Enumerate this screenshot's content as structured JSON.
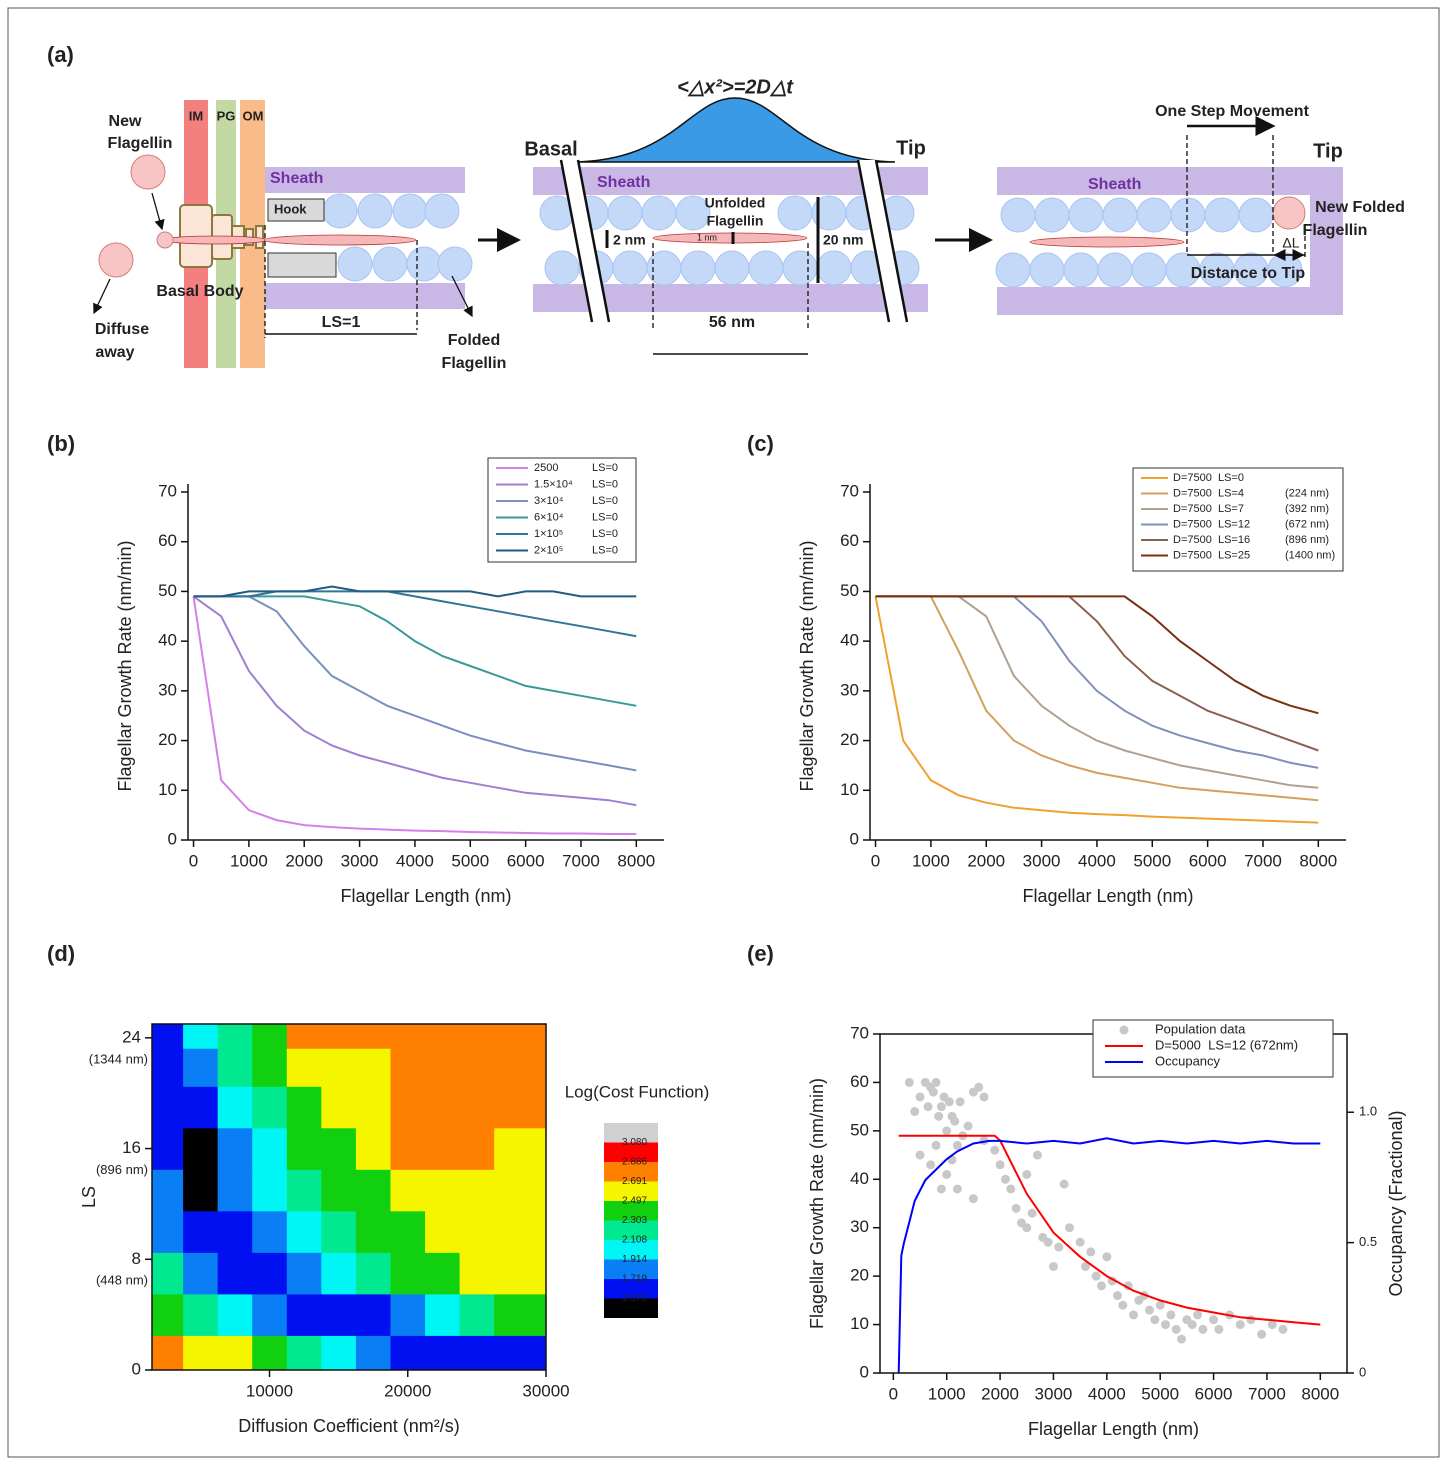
{
  "diagram": {
    "panel_label": "(a)",
    "membranes": [
      "IM",
      "PG",
      "OM"
    ],
    "new_flagellin": [
      "New",
      "Flagellin"
    ],
    "sheath": [
      "Sheath",
      "Sheath",
      "Sheath"
    ],
    "hook": "Hook",
    "basal_body": "Basal Body",
    "diffuse_away": [
      "Diffuse",
      "away"
    ],
    "ls": "LS=1",
    "folded_flagellin": [
      "Folded",
      "Flagellin"
    ],
    "msd": "<△x²>=2D△t",
    "basal": "Basal",
    "tips": [
      "Tip",
      "Tip"
    ],
    "unfolded_flagellin": [
      "Unfolded",
      "Flagellin"
    ],
    "width_2nm": "2 nm",
    "width_1nm": "1 nm",
    "width_20nm": "20 nm",
    "length_56nm": "56 nm",
    "one_step": "One Step Movement",
    "new_folded": [
      "New Folded",
      "Flagellin"
    ],
    "delta_l": "ΔL",
    "distance_to_tip": "Distance to Tip"
  },
  "chart_data": [
    {
      "type": "line",
      "panel_label": "(b)",
      "x_label": "Flagellar Length (nm)",
      "y_label": "Flagellar Growth Rate (nm/min)",
      "xlim": [
        -100,
        8500
      ],
      "ylim": [
        0,
        70
      ],
      "xticks": [
        0,
        1000,
        2000,
        3000,
        4000,
        5000,
        6000,
        7000,
        8000
      ],
      "yticks": [
        0,
        10,
        20,
        30,
        40,
        50,
        60,
        70
      ],
      "legend": "upper right",
      "x": [
        0,
        500,
        1000,
        1500,
        2000,
        2500,
        3000,
        3500,
        4000,
        4500,
        5000,
        5500,
        6000,
        6500,
        7000,
        7500,
        8000
      ],
      "series": [
        {
          "name": "2500",
          "ls": "LS=0",
          "color": "#d77fe8",
          "values": [
            49,
            12,
            6,
            4,
            3,
            2.6,
            2.3,
            2.1,
            1.9,
            1.8,
            1.6,
            1.5,
            1.4,
            1.3,
            1.3,
            1.2,
            1.2
          ]
        },
        {
          "name": "1.5×10⁴",
          "ls": "LS=0",
          "color": "#a07fd2",
          "values": [
            49,
            45,
            34,
            27,
            22,
            19,
            17,
            15.5,
            14,
            12.5,
            11.5,
            10.5,
            9.5,
            9,
            8.5,
            8,
            7
          ]
        },
        {
          "name": "3×10⁴",
          "ls": "LS=0",
          "color": "#7a8fc0",
          "values": [
            49,
            49,
            49,
            46,
            39,
            33,
            30,
            27,
            25,
            23,
            21,
            19.5,
            18,
            17,
            16,
            15,
            14
          ]
        },
        {
          "name": "6×10⁴",
          "ls": "LS=0",
          "color": "#3a9a98",
          "values": [
            49,
            49,
            49,
            49,
            49,
            48,
            47,
            44,
            40,
            37,
            35,
            33,
            31,
            30,
            29,
            28,
            27
          ]
        },
        {
          "name": "1×10⁵",
          "ls": "LS=0",
          "color": "#2f7694",
          "values": [
            49,
            49,
            49,
            50,
            50,
            50,
            50,
            50,
            49,
            48,
            47,
            46,
            45,
            44,
            43,
            42,
            41
          ]
        },
        {
          "name": "2×10⁵",
          "ls": "LS=0",
          "color": "#235a80",
          "values": [
            49,
            49,
            50,
            50,
            50,
            51,
            50,
            50,
            50,
            50,
            50,
            49,
            50,
            50,
            49,
            49,
            49
          ]
        }
      ]
    },
    {
      "type": "line",
      "panel_label": "(c)",
      "x_label": "Flagellar Length (nm)",
      "y_label": "Flagellar Growth Rate (nm/min)",
      "xlim": [
        -100,
        8500
      ],
      "ylim": [
        0,
        70
      ],
      "xticks": [
        0,
        1000,
        2000,
        3000,
        4000,
        5000,
        6000,
        7000,
        8000
      ],
      "yticks": [
        0,
        10,
        20,
        30,
        40,
        50,
        60,
        70
      ],
      "legend": "upper right",
      "x": [
        0,
        500,
        1000,
        1500,
        2000,
        2500,
        3000,
        3500,
        4000,
        4500,
        5000,
        5500,
        6000,
        6500,
        7000,
        7500,
        8000
      ],
      "series": [
        {
          "name": "D=7500  LS=0",
          "color": "#f0a030",
          "values": [
            49,
            20,
            12,
            9,
            7.5,
            6.5,
            6,
            5.5,
            5.2,
            5,
            4.7,
            4.5,
            4.3,
            4.1,
            3.9,
            3.7,
            3.5
          ]
        },
        {
          "name": "D=7500  LS=4",
          "length": "(224 nm)",
          "color": "#d4a060",
          "values": [
            49,
            49,
            49,
            38,
            26,
            20,
            17,
            15,
            13.5,
            12.5,
            11.5,
            10.5,
            10,
            9.5,
            9,
            8.5,
            8
          ]
        },
        {
          "name": "D=7500  LS=7",
          "length": "(392 nm)",
          "color": "#b0a090",
          "values": [
            49,
            49,
            49,
            49,
            45,
            33,
            27,
            23,
            20,
            18,
            16.5,
            15,
            14,
            13,
            12,
            11,
            10.5
          ]
        },
        {
          "name": "D=7500  LS=12",
          "length": "(672 nm)",
          "color": "#8090b8",
          "values": [
            49,
            49,
            49,
            49,
            49,
            49,
            44,
            36,
            30,
            26,
            23,
            21,
            19.5,
            18,
            17,
            15.5,
            14.5
          ]
        },
        {
          "name": "D=7500  LS=16",
          "length": "(896 nm)",
          "color": "#8a6050",
          "values": [
            49,
            49,
            49,
            49,
            49,
            49,
            49,
            49,
            44,
            37,
            32,
            29,
            26,
            24,
            22,
            20,
            18
          ]
        },
        {
          "name": "D=7500  LS=25",
          "length": "(1400 nm)",
          "color": "#7a3010",
          "values": [
            49,
            49,
            49,
            49,
            49,
            49,
            49,
            49,
            49,
            49,
            45,
            40,
            36,
            32,
            29,
            27,
            25.5
          ]
        }
      ]
    },
    {
      "type": "contour",
      "panel_label": "(d)",
      "x_label": "Diffusion Coefficient (nm²/s)",
      "y_label": "LS",
      "frame": true,
      "xlim": [
        1500,
        30000
      ],
      "ylim": [
        0,
        25
      ],
      "xticks": [
        10000,
        20000,
        30000
      ],
      "yticks": [
        0,
        {
          "value": 8,
          "label": "8",
          "note": "(448 nm)"
        },
        {
          "value": 16,
          "label": "16",
          "note": "(896 nm)"
        },
        {
          "value": 24,
          "label": "24",
          "note": "(1344 nm)"
        }
      ],
      "x": [
        2500,
        5000,
        7500,
        10000,
        12500,
        15000,
        17500,
        20000,
        22500,
        25000,
        27500
      ],
      "y": [
        1,
        4,
        7,
        10,
        13,
        16,
        19,
        22,
        24.5
      ],
      "z": [
        [
          2.8,
          2.6,
          2.6,
          2.4,
          2.2,
          2.0,
          1.8,
          1.65,
          1.65,
          1.65,
          1.65
        ],
        [
          2.4,
          2.2,
          2.0,
          1.8,
          1.65,
          1.65,
          1.65,
          1.8,
          2.0,
          2.2,
          2.4
        ],
        [
          2.2,
          1.8,
          1.65,
          1.65,
          1.8,
          2.0,
          2.2,
          2.4,
          2.4,
          2.6,
          2.6
        ],
        [
          1.8,
          1.65,
          1.65,
          1.8,
          2.0,
          2.2,
          2.4,
          2.4,
          2.6,
          2.6,
          2.6
        ],
        [
          1.8,
          1.5,
          1.8,
          2.0,
          2.2,
          2.4,
          2.4,
          2.6,
          2.6,
          2.6,
          2.6
        ],
        [
          1.65,
          1.5,
          1.8,
          2.0,
          2.4,
          2.4,
          2.6,
          2.8,
          2.8,
          2.8,
          2.6
        ],
        [
          1.65,
          1.65,
          2.0,
          2.2,
          2.4,
          2.6,
          2.6,
          2.8,
          2.8,
          2.8,
          2.8
        ],
        [
          1.65,
          1.8,
          2.2,
          2.4,
          2.6,
          2.6,
          2.6,
          2.8,
          2.8,
          2.8,
          2.8
        ],
        [
          1.65,
          2.0,
          2.2,
          2.4,
          2.8,
          2.8,
          2.8,
          2.8,
          2.8,
          2.8,
          2.8
        ]
      ],
      "colorbar_title": "Log(Cost Function)",
      "levels": [
        1.575,
        1.719,
        1.914,
        2.108,
        2.303,
        2.497,
        2.691,
        2.886,
        3.08
      ],
      "level_labels": [
        "1.575",
        "1.719",
        "1.914",
        "2.108",
        "2.303",
        "2.497",
        "2.691",
        "2.886",
        "3.080"
      ],
      "colors": [
        "#000000",
        "#0010f0",
        "#0a7ef5",
        "#00f5f5",
        "#00e890",
        "#10d010",
        "#f5f500",
        "#ff8000",
        "#ff0000",
        "#d0d0d0"
      ]
    },
    {
      "type": "line",
      "panel_label": "(e)",
      "x_label": "Flagellar Length (nm)",
      "y_label": "Flagellar Growth Rate (nm/min)",
      "y2_label": "Occupancy (Fractional)",
      "frame": true,
      "xlim": [
        -250,
        8500
      ],
      "ylim": [
        0,
        70
      ],
      "y2lim": [
        0,
        1.3
      ],
      "xticks": [
        0,
        1000,
        2000,
        3000,
        4000,
        5000,
        6000,
        7000,
        8000
      ],
      "yticks": [
        0,
        10,
        20,
        30,
        40,
        50,
        60,
        70
      ],
      "y2ticks": [
        0,
        0.5,
        {
          "value": 1,
          "label": "1.0"
        }
      ],
      "legend": "upper right",
      "series": [
        {
          "name": "Population data",
          "type": "scatter",
          "color": "#c8c8c8",
          "x": [
            300,
            400,
            500,
            600,
            650,
            700,
            750,
            800,
            850,
            900,
            950,
            1000,
            1050,
            1100,
            1150,
            1200,
            1250,
            1300,
            1400,
            1500,
            1600,
            1700,
            500,
            700,
            900,
            1000,
            1200,
            1500,
            800,
            1100,
            1700,
            1900,
            2000,
            2100,
            2200,
            2300,
            2400,
            2500,
            2600,
            2700,
            2800,
            2900,
            3000,
            3100,
            3300,
            3500,
            3600,
            3700,
            3800,
            3900,
            4000,
            4100,
            4200,
            4300,
            4400,
            4500,
            4600,
            4700,
            4800,
            4900,
            5000,
            5100,
            5200,
            5300,
            5400,
            5500,
            5600,
            5700,
            5800,
            6000,
            6100,
            6300,
            6500,
            6700,
            6900,
            7100,
            7300,
            3200,
            2500
          ],
          "values": [
            60,
            54,
            57,
            60,
            55,
            59,
            58,
            60,
            53,
            55,
            57,
            50,
            56,
            53,
            52,
            47,
            56,
            49,
            51,
            58,
            59,
            57,
            45,
            43,
            38,
            41,
            38,
            36,
            47,
            44,
            48,
            46,
            43,
            40,
            38,
            34,
            31,
            30,
            33,
            45,
            28,
            27,
            22,
            26,
            30,
            27,
            22,
            25,
            20,
            18,
            24,
            19,
            16,
            14,
            18,
            12,
            15,
            16,
            13,
            11,
            14,
            10,
            12,
            9,
            7,
            11,
            10,
            12,
            9,
            11,
            9,
            12,
            10,
            11,
            8,
            10,
            9,
            39,
            41
          ]
        },
        {
          "name": "D=5000  LS=12 (672nm)",
          "color": "#ff0000",
          "x": [
            100,
            500,
            1000,
            1500,
            1900,
            2000,
            2500,
            3000,
            3500,
            4000,
            4500,
            5000,
            5500,
            6000,
            6500,
            7000,
            7500,
            8000
          ],
          "values": [
            49,
            49,
            49,
            49,
            49,
            48,
            37,
            29,
            24,
            20,
            17,
            15,
            13.5,
            12.5,
            11.5,
            11,
            10.5,
            10
          ]
        },
        {
          "name": "Occupancy",
          "color": "#0000ff",
          "axis": "y2",
          "x": [
            100,
            150,
            200,
            300,
            400,
            500,
            600,
            800,
            1000,
            1200,
            1500,
            1800,
            2000,
            2500,
            3000,
            3500,
            4000,
            4500,
            5000,
            5500,
            6000,
            6500,
            7000,
            7500,
            8000
          ],
          "values": [
            0,
            0.45,
            0.5,
            0.58,
            0.66,
            0.7,
            0.74,
            0.78,
            0.82,
            0.85,
            0.88,
            0.89,
            0.89,
            0.88,
            0.89,
            0.88,
            0.9,
            0.88,
            0.89,
            0.88,
            0.89,
            0.88,
            0.89,
            0.88,
            0.88
          ]
        }
      ]
    }
  ]
}
